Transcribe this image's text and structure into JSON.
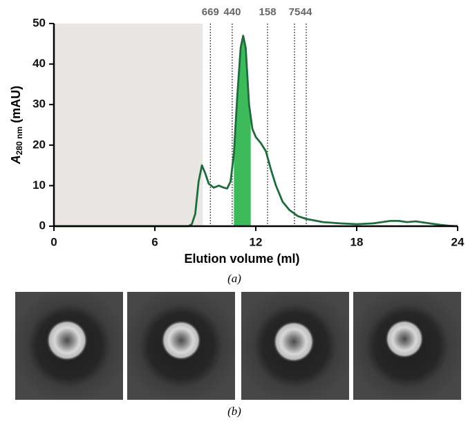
{
  "chart_data": {
    "type": "line",
    "ylabel": [
      "A",
      "280 nm",
      "(mAU)"
    ],
    "xlabel": "Elution volume (ml)",
    "x": [
      0,
      2,
      4,
      6,
      7,
      8,
      8.2,
      8.4,
      8.6,
      8.8,
      9.0,
      9.2,
      9.5,
      9.8,
      10.1,
      10.3,
      10.5,
      10.7,
      10.9,
      11.1,
      11.25,
      11.4,
      11.6,
      11.8,
      12.0,
      12.3,
      12.6,
      12.9,
      13.2,
      13.6,
      14.0,
      14.5,
      15,
      16,
      17,
      18,
      19,
      19.5,
      20,
      20.5,
      21,
      21.5,
      22,
      22.5,
      23,
      23.5,
      24
    ],
    "values": [
      0,
      0,
      0,
      0,
      0,
      0,
      0.5,
      3,
      11,
      15,
      13,
      10.5,
      9.5,
      10,
      9.5,
      9.3,
      11,
      18,
      32,
      44,
      47,
      44,
      30,
      24,
      22,
      20.5,
      18.5,
      14,
      10,
      6,
      4,
      2.5,
      1.8,
      1,
      0.7,
      0.5,
      0.7,
      1,
      1.3,
      1.3,
      1,
      1.2,
      0.9,
      0.6,
      0.3,
      0.1,
      0
    ],
    "color": "#1e6b3c",
    "void": {
      "range": [
        0,
        8.85
      ],
      "color": "#e9e6e3"
    },
    "fraction": {
      "range": [
        10.7,
        11.7
      ],
      "color": "#3dba5a"
    },
    "markers": [
      {
        "value": 9.3,
        "label": "669"
      },
      {
        "value": 10.6,
        "label": "440"
      },
      {
        "value": 12.7,
        "label": "158"
      },
      {
        "value": 14.3,
        "label": "75"
      },
      {
        "value": 15.0,
        "label": "44"
      }
    ],
    "xlim": [
      0,
      24
    ],
    "xticks": [
      0,
      6,
      12,
      18,
      24
    ],
    "ylim": [
      0,
      50
    ],
    "yticks": [
      0,
      10,
      20,
      30,
      40,
      50
    ]
  },
  "panel_labels": [
    "(a)",
    "(b)"
  ]
}
